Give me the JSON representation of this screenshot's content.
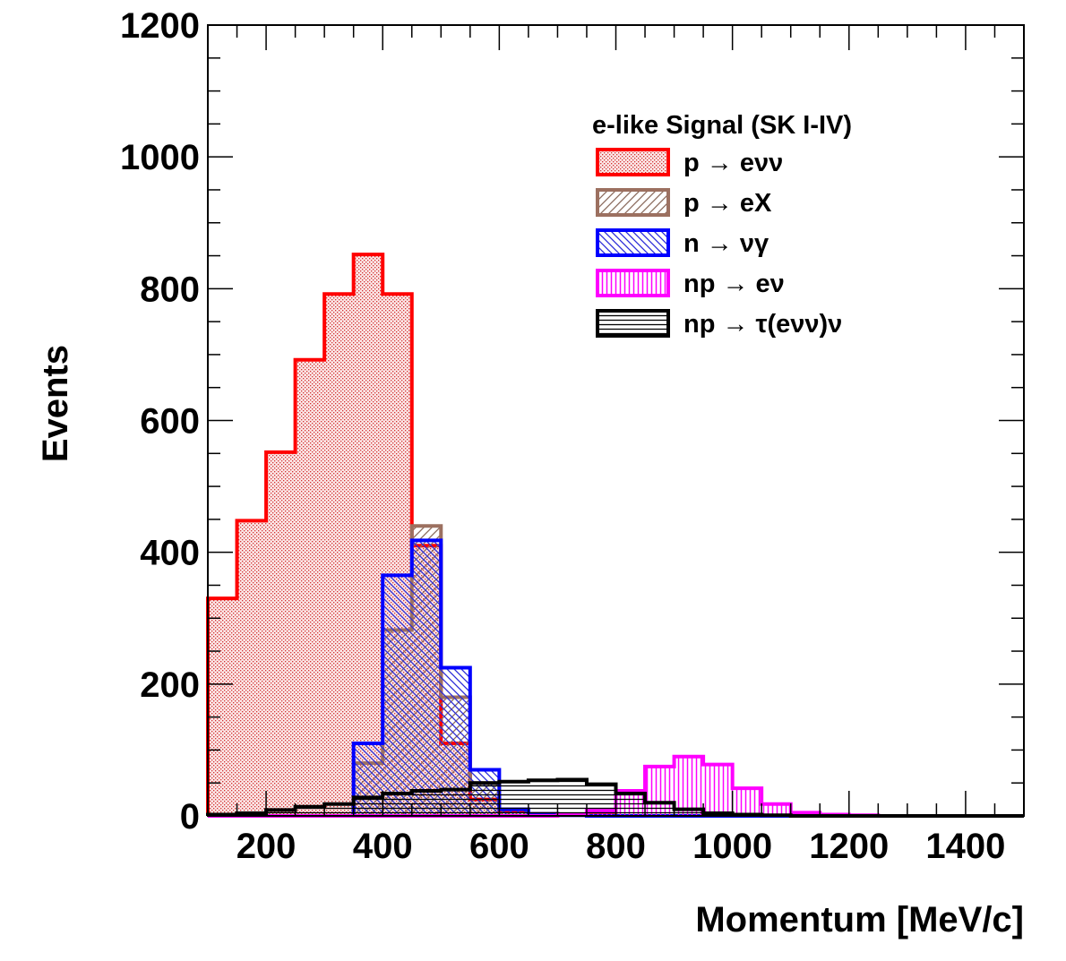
{
  "chart_data": {
    "type": "histogram",
    "title": "",
    "xlabel": "Momentum [MeV/c]",
    "ylabel": "Events",
    "xlim": [
      100,
      1500
    ],
    "ylim": [
      0,
      1200
    ],
    "x_ticks": [
      200,
      400,
      600,
      800,
      1000,
      1200,
      1400
    ],
    "x_tick_labels": [
      "200",
      "400",
      "600",
      "800",
      "1000",
      "1200",
      "1400"
    ],
    "y_ticks": [
      0,
      200,
      400,
      600,
      800,
      1000,
      1200
    ],
    "y_tick_labels": [
      "0",
      "200",
      "400",
      "600",
      "800",
      "1000",
      "1200"
    ],
    "bin_edges": [
      100,
      150,
      200,
      250,
      300,
      350,
      400,
      450,
      500,
      550,
      600,
      650,
      700,
      750,
      800,
      850,
      900,
      950,
      1000,
      1050,
      1100,
      1150,
      1200,
      1250,
      1300,
      1350,
      1400,
      1450,
      1500
    ],
    "legend_title": "e-like Signal (SK I-IV)",
    "legend_position": "top-right",
    "series": [
      {
        "name": "p → eνν",
        "color": "#ff0000",
        "pattern": "dots",
        "values": [
          330,
          448,
          552,
          692,
          792,
          852,
          792,
          410,
          110,
          25,
          8,
          3,
          2,
          1,
          0,
          0,
          0,
          0,
          0,
          0,
          0,
          0,
          0,
          0,
          0,
          0,
          0,
          0
        ]
      },
      {
        "name": "p → eX",
        "color": "#9c7060",
        "pattern": "diag-up",
        "values": [
          0,
          0,
          0,
          0,
          0,
          80,
          282,
          440,
          180,
          50,
          10,
          3,
          1,
          0,
          0,
          0,
          0,
          0,
          0,
          0,
          0,
          0,
          0,
          0,
          0,
          0,
          0,
          0
        ]
      },
      {
        "name": "n → νγ",
        "color": "#0000ff",
        "pattern": "diag-down",
        "values": [
          0,
          0,
          0,
          0,
          0,
          110,
          365,
          418,
          225,
          70,
          10,
          3,
          1,
          0,
          0,
          0,
          0,
          0,
          0,
          0,
          0,
          0,
          0,
          0,
          0,
          0,
          0,
          0
        ]
      },
      {
        "name": "np → eν",
        "color": "#ff00ff",
        "pattern": "vertical",
        "values": [
          0,
          0,
          0,
          0,
          0,
          0,
          0,
          0,
          0,
          0,
          0,
          0,
          2,
          8,
          38,
          75,
          90,
          78,
          42,
          18,
          5,
          2,
          1,
          0,
          0,
          0,
          0,
          0
        ]
      },
      {
        "name": "np → τ(eνν)ν",
        "color": "#000000",
        "pattern": "horizontal",
        "values": [
          2,
          4,
          9,
          14,
          18,
          28,
          34,
          38,
          40,
          50,
          52,
          54,
          55,
          48,
          34,
          20,
          10,
          4,
          2,
          1,
          0,
          0,
          0,
          0,
          0,
          0,
          0,
          0
        ]
      }
    ]
  }
}
